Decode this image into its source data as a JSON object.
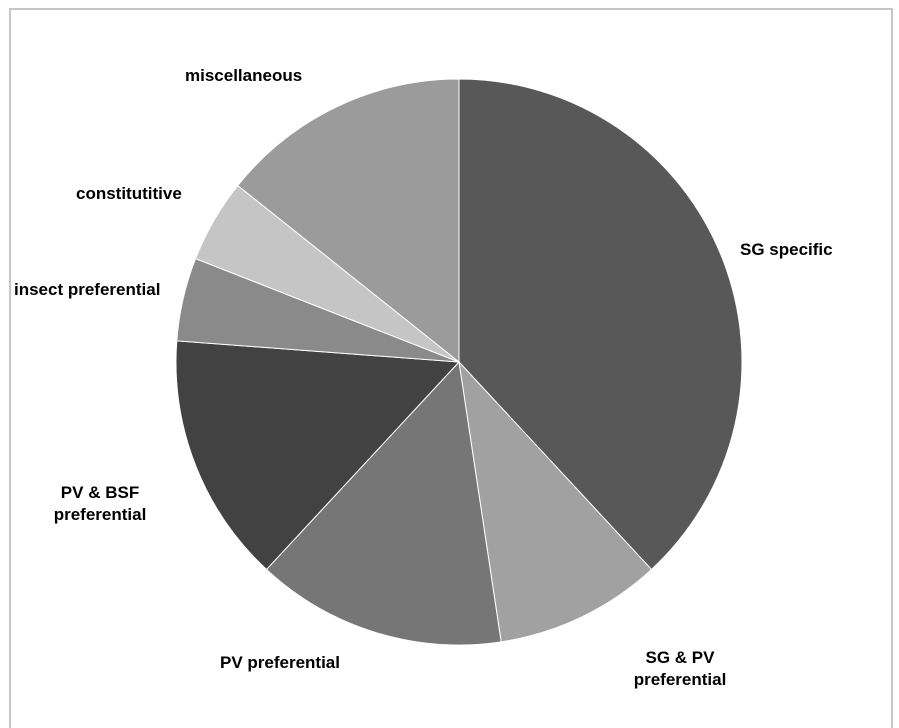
{
  "chart_data": {
    "type": "pie",
    "title": "",
    "start_angle_deg": 0,
    "direction": "clockwise",
    "slices": [
      {
        "label": [
          "SG specific"
        ],
        "value": 40,
        "color": "#585858"
      },
      {
        "label": [
          "SG & PV",
          "preferential"
        ],
        "value": 10,
        "color": "#a1a1a1"
      },
      {
        "label": [
          "PV preferential"
        ],
        "value": 15,
        "color": "#767676"
      },
      {
        "label": [
          "PV & BSF",
          "preferential"
        ],
        "value": 15,
        "color": "#424242"
      },
      {
        "label": [
          "insect preferential"
        ],
        "value": 5,
        "color": "#8a8a8a"
      },
      {
        "label": [
          "constitutitive"
        ],
        "value": 5,
        "color": "#c5c5c5"
      },
      {
        "label": [
          "miscellaneous"
        ],
        "value": 15,
        "color": "#9b9b9b"
      }
    ]
  }
}
